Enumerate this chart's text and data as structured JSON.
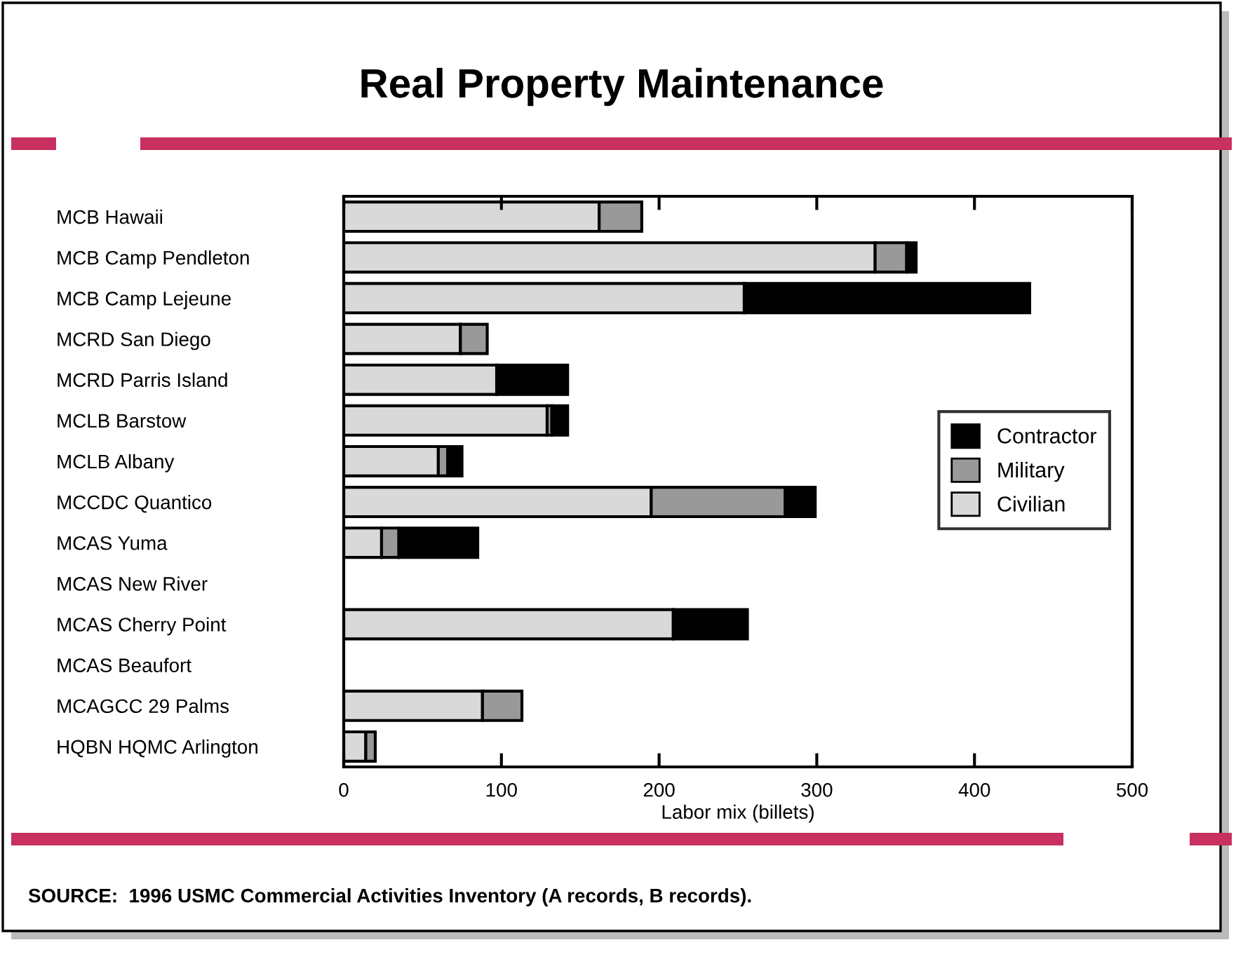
{
  "chart_data": {
    "type": "bar",
    "orientation": "horizontal",
    "stacked": true,
    "title": "Real Property Maintenance",
    "xlabel": "Labor mix (billets)",
    "categories": [
      "MCB Hawaii",
      "MCB Camp Pendleton",
      "MCB Camp Lejeune",
      "MCRD San Diego",
      "MCRD Parris Island",
      "MCLB Barstow",
      "MCLB Albany",
      "MCCDC Quantico",
      "MCAS Yuma",
      "MCAS New River",
      "MCAS Cherry Point",
      "MCAS Beaufort",
      "MCAGCC 29 Palms",
      "HQBN HQMC Arlington"
    ],
    "series": [
      {
        "name": "Civilian",
        "color": "#d9d9d9",
        "values": [
          162,
          337,
          254,
          74,
          97,
          129,
          60,
          195,
          24,
          null,
          209,
          null,
          88,
          14
        ]
      },
      {
        "name": "Military",
        "color": "#999999",
        "values": [
          27,
          20,
          null,
          17,
          null,
          3,
          6,
          85,
          11,
          null,
          null,
          null,
          25,
          6
        ]
      },
      {
        "name": "Contractor",
        "color": "#000000",
        "values": [
          null,
          6,
          181,
          null,
          45,
          10,
          9,
          19,
          50,
          null,
          47,
          null,
          null,
          null
        ]
      }
    ],
    "xlim": [
      0,
      500
    ],
    "xticks": [
      0,
      100,
      200,
      300,
      400,
      500
    ],
    "grid": false,
    "legend": "right",
    "annotations": [
      "SOURCE:  1996 USMC Commercial Activities Inventory (A records, B records)."
    ]
  }
}
